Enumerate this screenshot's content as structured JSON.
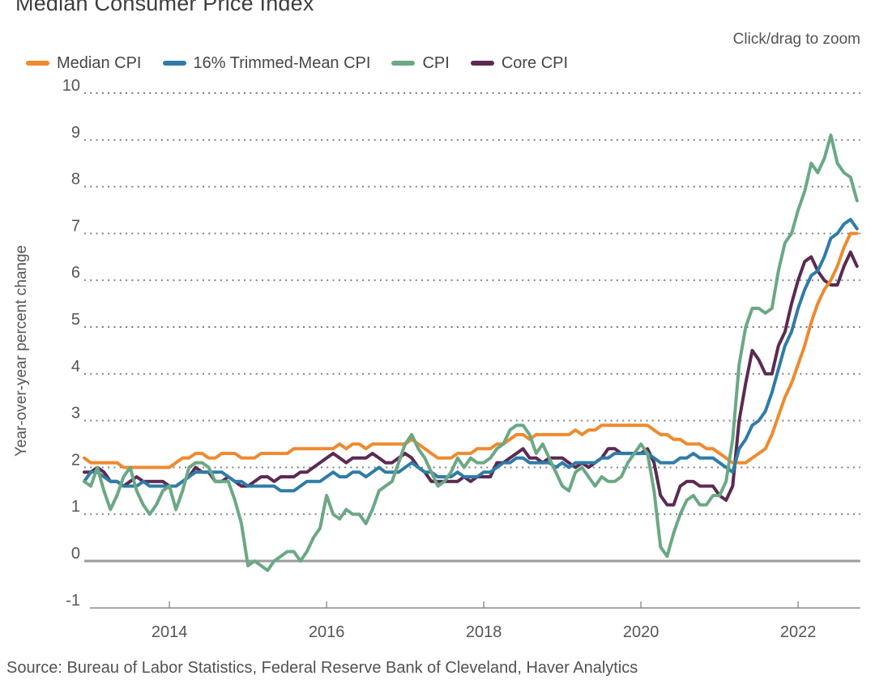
{
  "title": "Median Consumer Price Index",
  "zoom_hint": "Click/drag to zoom",
  "y_axis_title": "Year-over-year percent change",
  "source": "Source: Bureau of Labor Statistics, Federal Reserve Bank of Cleveland, Haver Analytics",
  "colors": {
    "median_cpi": "#EE8A2F",
    "trimmed_mean_cpi": "#2E7CA8",
    "cpi": "#6BA884",
    "core_cpi": "#5B2A52",
    "gridline": "#767676",
    "zero_line": "#9B9B9B",
    "axis_line": "#8A8A8A",
    "tick_label": "#565656"
  },
  "chart_data": {
    "type": "line",
    "title": "Median Consumer Price Index",
    "xlabel": "",
    "ylabel": "Year-over-year percent change",
    "x_start_month": "2012-12",
    "x_end_month": "2022-10",
    "x_frequency": "monthly",
    "x_tick_labels": [
      "2014",
      "2016",
      "2018",
      "2020",
      "2022"
    ],
    "y_tick_labels": [
      "10",
      "9",
      "8",
      "7",
      "6",
      "5",
      "4",
      "3",
      "2",
      "1",
      "0",
      "-1"
    ],
    "ylim": [
      -1,
      10
    ],
    "grid": "dotted horizontal lines at integers 1..10, solid gray line at 0",
    "legend_position": "top-left",
    "series": [
      {
        "name": "Median CPI",
        "color": "#EE8A2F",
        "values": [
          2.2,
          2.1,
          2.1,
          2.1,
          2.1,
          2.1,
          2.0,
          2.0,
          2.0,
          2.0,
          2.0,
          2.0,
          2.0,
          2.0,
          2.1,
          2.2,
          2.2,
          2.3,
          2.3,
          2.2,
          2.2,
          2.3,
          2.3,
          2.3,
          2.2,
          2.2,
          2.2,
          2.3,
          2.3,
          2.3,
          2.3,
          2.3,
          2.4,
          2.4,
          2.4,
          2.4,
          2.4,
          2.4,
          2.4,
          2.5,
          2.4,
          2.5,
          2.5,
          2.4,
          2.5,
          2.5,
          2.5,
          2.5,
          2.5,
          2.5,
          2.6,
          2.5,
          2.4,
          2.3,
          2.2,
          2.2,
          2.2,
          2.3,
          2.3,
          2.3,
          2.4,
          2.4,
          2.4,
          2.5,
          2.5,
          2.6,
          2.7,
          2.7,
          2.6,
          2.7,
          2.7,
          2.7,
          2.7,
          2.7,
          2.7,
          2.8,
          2.7,
          2.8,
          2.8,
          2.9,
          2.9,
          2.9,
          2.9,
          2.9,
          2.9,
          2.9,
          2.9,
          2.8,
          2.7,
          2.7,
          2.6,
          2.6,
          2.5,
          2.5,
          2.5,
          2.4,
          2.4,
          2.3,
          2.2,
          2.1,
          2.1,
          2.1,
          2.2,
          2.3,
          2.4,
          2.7,
          3.1,
          3.5,
          3.8,
          4.2,
          4.6,
          5.1,
          5.5,
          5.8,
          6.0,
          6.3,
          6.7,
          7.0,
          7.0
        ]
      },
      {
        "name": "16% Trimmed-Mean CPI",
        "color": "#2E7CA8",
        "values": [
          1.7,
          1.9,
          1.9,
          1.8,
          1.7,
          1.7,
          1.6,
          1.6,
          1.6,
          1.7,
          1.6,
          1.6,
          1.6,
          1.6,
          1.6,
          1.7,
          1.8,
          1.9,
          1.9,
          1.9,
          1.9,
          1.9,
          1.8,
          1.7,
          1.7,
          1.6,
          1.6,
          1.6,
          1.6,
          1.6,
          1.5,
          1.5,
          1.5,
          1.6,
          1.7,
          1.7,
          1.7,
          1.8,
          1.9,
          1.8,
          1.8,
          1.9,
          1.9,
          1.8,
          1.9,
          2.0,
          1.9,
          1.9,
          1.9,
          2.0,
          2.1,
          2.0,
          1.9,
          1.9,
          1.8,
          1.8,
          1.8,
          1.9,
          1.8,
          1.8,
          1.8,
          1.9,
          1.9,
          2.0,
          2.1,
          2.1,
          2.2,
          2.2,
          2.1,
          2.1,
          2.1,
          2.1,
          2.0,
          2.1,
          2.0,
          2.1,
          2.1,
          2.1,
          2.1,
          2.2,
          2.2,
          2.3,
          2.3,
          2.3,
          2.3,
          2.3,
          2.3,
          2.2,
          2.1,
          2.1,
          2.1,
          2.2,
          2.2,
          2.3,
          2.2,
          2.2,
          2.2,
          2.1,
          2.0,
          1.9,
          2.4,
          2.6,
          2.9,
          3.0,
          3.2,
          3.6,
          4.1,
          4.6,
          4.9,
          5.4,
          5.8,
          6.1,
          6.2,
          6.5,
          6.9,
          7.0,
          7.2,
          7.3,
          7.1
        ]
      },
      {
        "name": "CPI",
        "color": "#6BA884",
        "values": [
          1.7,
          1.6,
          2.0,
          1.5,
          1.1,
          1.4,
          1.8,
          2.0,
          1.5,
          1.2,
          1.0,
          1.2,
          1.5,
          1.6,
          1.1,
          1.5,
          2.0,
          2.1,
          2.1,
          2.0,
          1.7,
          1.7,
          1.7,
          1.3,
          0.8,
          -0.1,
          0.0,
          -0.1,
          -0.2,
          0.0,
          0.1,
          0.2,
          0.2,
          0.0,
          0.2,
          0.5,
          0.7,
          1.4,
          1.0,
          0.9,
          1.1,
          1.0,
          1.0,
          0.8,
          1.1,
          1.5,
          1.6,
          1.7,
          2.1,
          2.5,
          2.7,
          2.4,
          2.2,
          1.9,
          1.6,
          1.7,
          1.9,
          2.2,
          2.0,
          2.2,
          2.1,
          2.1,
          2.2,
          2.4,
          2.5,
          2.8,
          2.9,
          2.9,
          2.7,
          2.3,
          2.5,
          2.2,
          1.9,
          1.6,
          1.5,
          1.9,
          2.0,
          1.8,
          1.6,
          1.8,
          1.7,
          1.7,
          1.8,
          2.1,
          2.3,
          2.5,
          2.3,
          1.5,
          0.3,
          0.1,
          0.6,
          1.0,
          1.3,
          1.4,
          1.2,
          1.2,
          1.4,
          1.4,
          1.7,
          2.6,
          4.2,
          5.0,
          5.4,
          5.4,
          5.3,
          5.4,
          6.2,
          6.8,
          7.0,
          7.5,
          7.9,
          8.5,
          8.3,
          8.6,
          9.1,
          8.5,
          8.3,
          8.2,
          7.7
        ]
      },
      {
        "name": "Core CPI",
        "color": "#5B2A52",
        "values": [
          1.9,
          1.9,
          2.0,
          1.9,
          1.7,
          1.7,
          1.6,
          1.7,
          1.8,
          1.7,
          1.7,
          1.7,
          1.7,
          1.6,
          1.6,
          1.7,
          1.8,
          2.0,
          1.9,
          1.9,
          1.7,
          1.7,
          1.8,
          1.7,
          1.6,
          1.6,
          1.7,
          1.8,
          1.8,
          1.7,
          1.8,
          1.8,
          1.8,
          1.9,
          1.9,
          2.0,
          2.1,
          2.2,
          2.3,
          2.2,
          2.1,
          2.2,
          2.2,
          2.2,
          2.3,
          2.2,
          2.1,
          2.1,
          2.2,
          2.3,
          2.2,
          2.0,
          1.9,
          1.7,
          1.7,
          1.7,
          1.7,
          1.7,
          1.8,
          1.7,
          1.8,
          1.8,
          1.8,
          2.1,
          2.1,
          2.2,
          2.3,
          2.4,
          2.2,
          2.2,
          2.1,
          2.2,
          2.2,
          2.2,
          2.1,
          2.0,
          2.1,
          2.0,
          2.1,
          2.2,
          2.4,
          2.4,
          2.3,
          2.3,
          2.3,
          2.3,
          2.4,
          2.1,
          1.4,
          1.2,
          1.2,
          1.6,
          1.7,
          1.7,
          1.6,
          1.6,
          1.6,
          1.4,
          1.3,
          1.6,
          3.0,
          3.8,
          4.5,
          4.3,
          4.0,
          4.0,
          4.6,
          4.9,
          5.5,
          6.0,
          6.4,
          6.5,
          6.2,
          6.0,
          5.9,
          5.9,
          6.3,
          6.6,
          6.3
        ]
      }
    ]
  }
}
